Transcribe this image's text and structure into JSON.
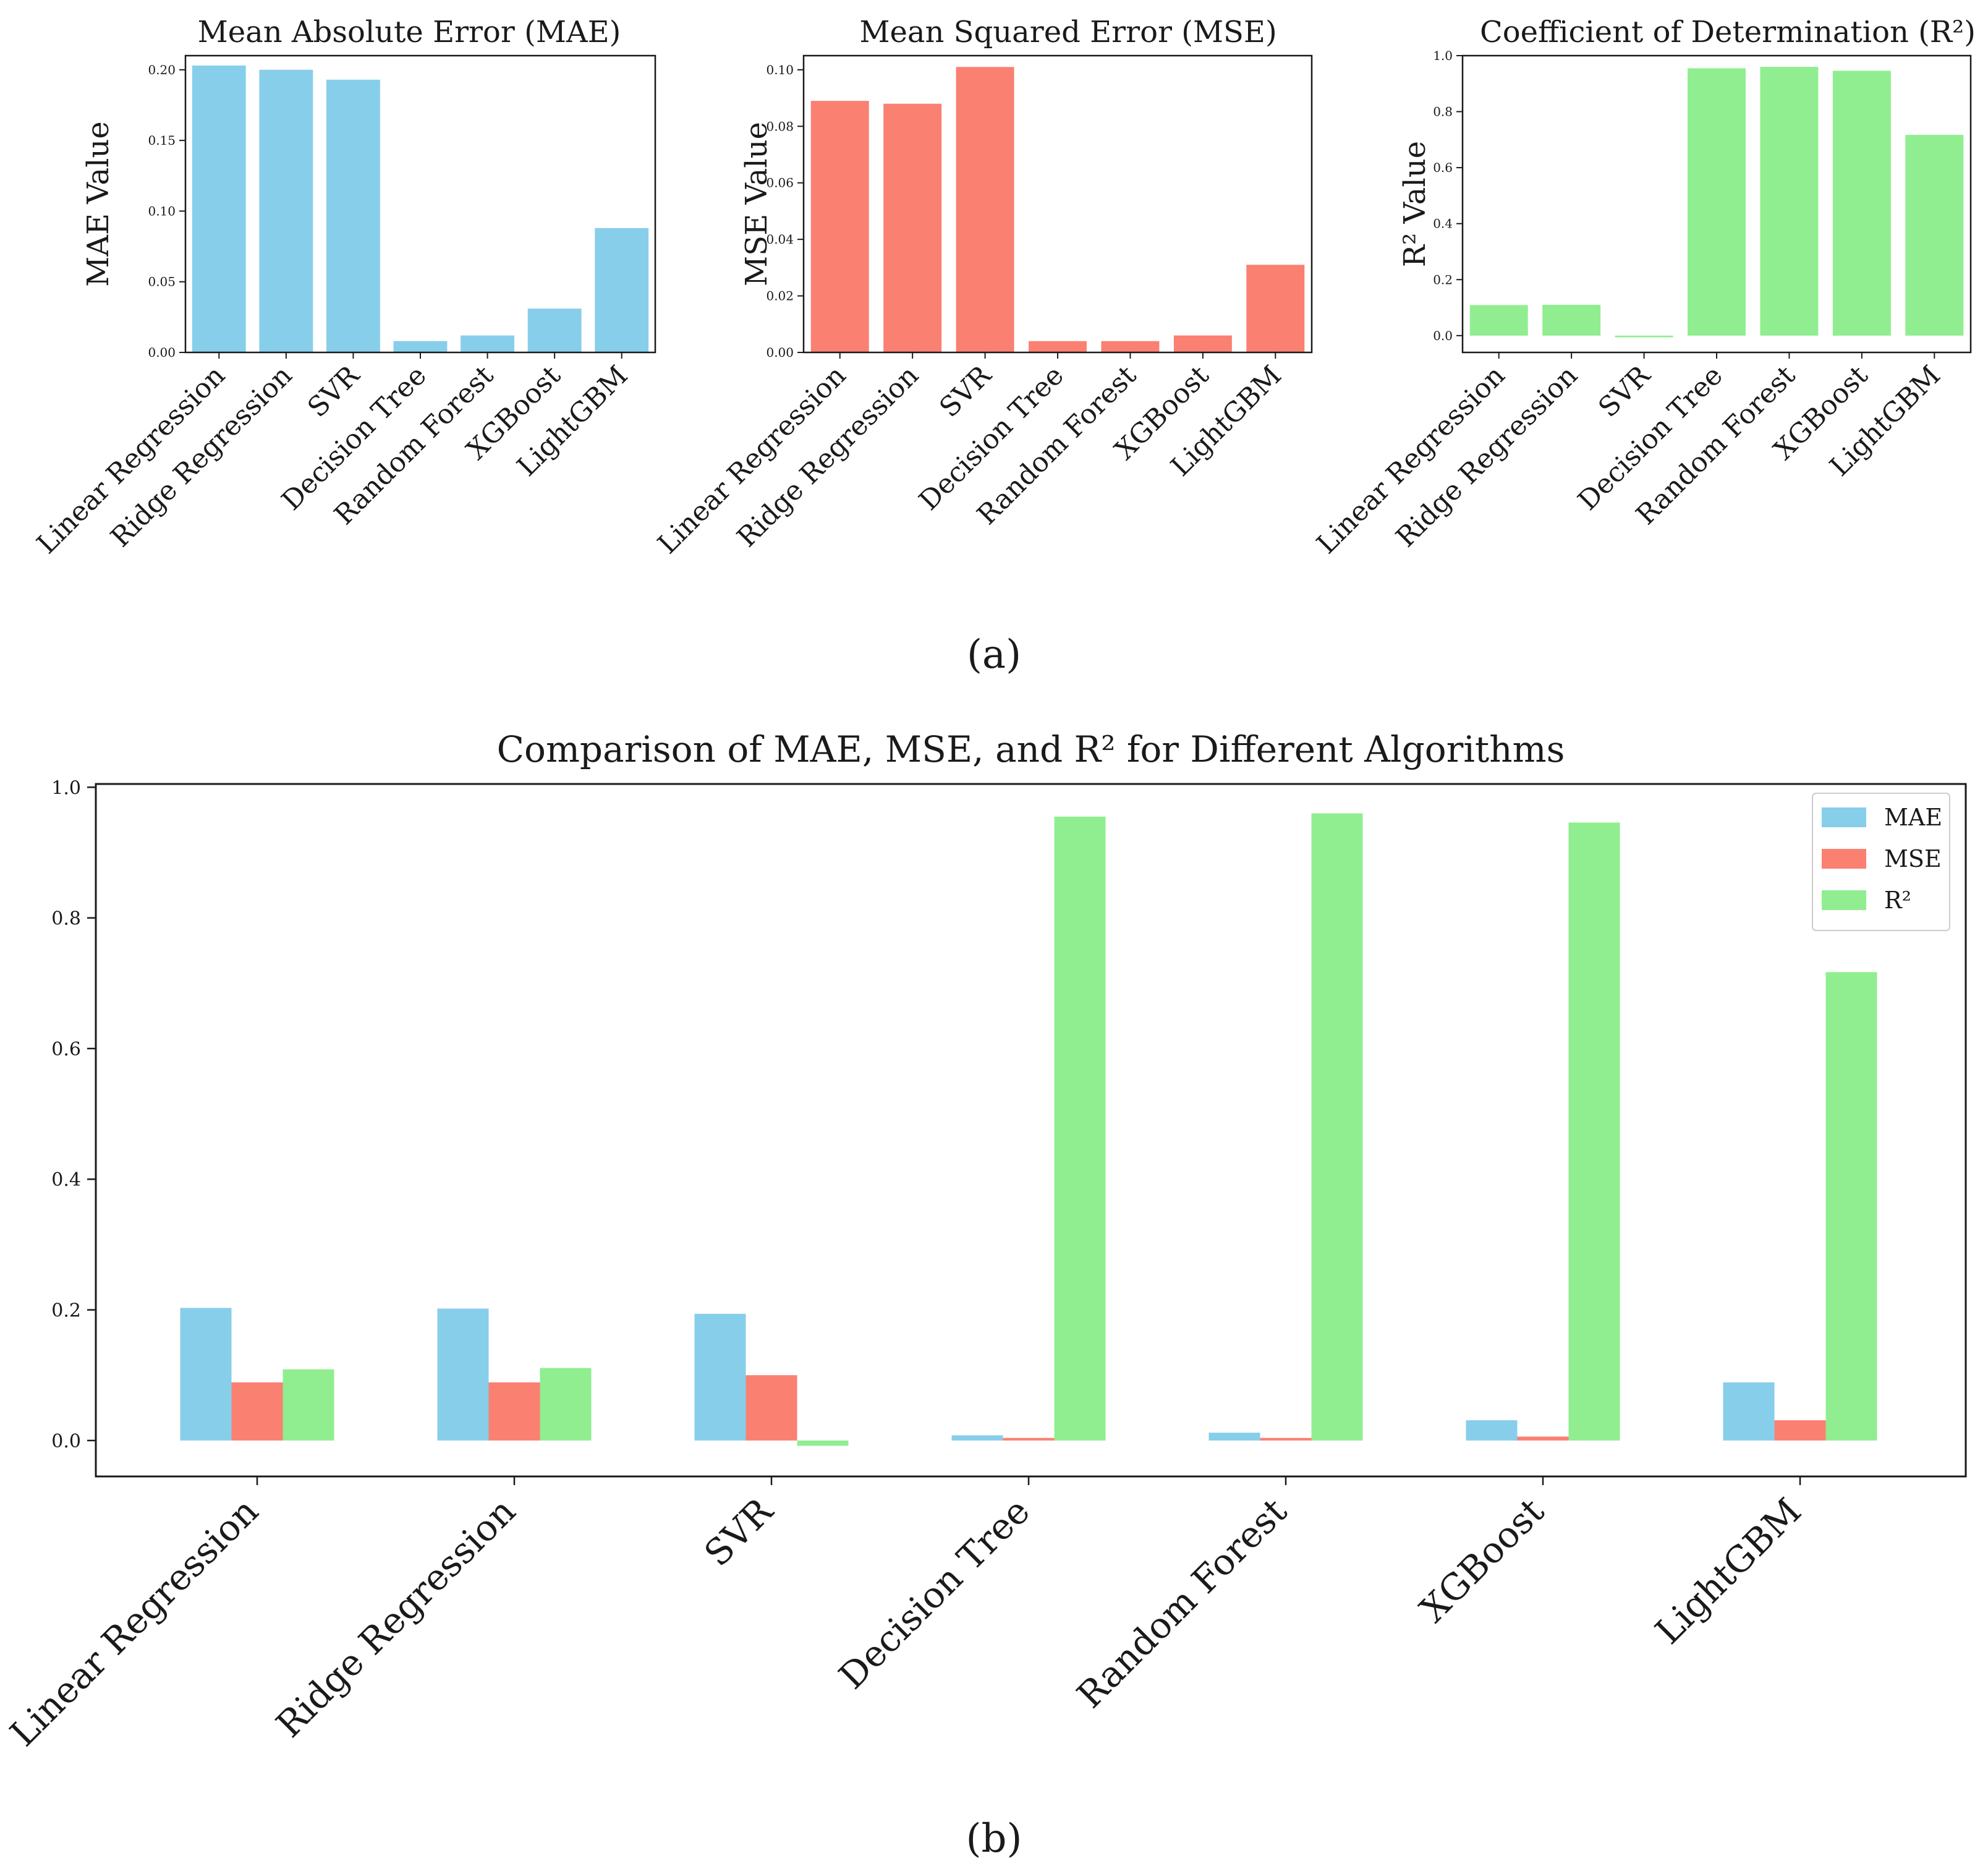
{
  "panel_labels": [
    "(a)",
    "(b)"
  ],
  "colors": {
    "mae": "#87CEEB",
    "mse": "#FA8072",
    "r2": "#90EE90"
  },
  "chart_data": [
    {
      "id": "mae",
      "type": "bar",
      "title": "Mean Absolute Error (MAE)",
      "xlabel": "",
      "ylabel": "MAE Value",
      "categories": [
        "Linear Regression",
        "Ridge Regression",
        "SVR",
        "Decision Tree",
        "Random Forest",
        "XGBoost",
        "LightGBM"
      ],
      "values": [
        0.203,
        0.2,
        0.193,
        0.008,
        0.012,
        0.031,
        0.088
      ],
      "ylim": [
        0,
        0.21
      ],
      "yticks": [
        0,
        0.05,
        0.1,
        0.15,
        0.2
      ],
      "ytick_labels": [
        "0.00",
        "0.05",
        "0.10",
        "0.15",
        "0.20"
      ],
      "color": "#87CEEB"
    },
    {
      "id": "mse",
      "type": "bar",
      "title": "Mean Squared Error (MSE)",
      "xlabel": "",
      "ylabel": "MSE Value",
      "categories": [
        "Linear Regression",
        "Ridge Regression",
        "SVR",
        "Decision Tree",
        "Random Forest",
        "XGBoost",
        "LightGBM"
      ],
      "values": [
        0.089,
        0.088,
        0.101,
        0.004,
        0.004,
        0.006,
        0.031
      ],
      "ylim": [
        0,
        0.105
      ],
      "yticks": [
        0,
        0.02,
        0.04,
        0.06,
        0.08,
        0.1
      ],
      "ytick_labels": [
        "0.00",
        "0.02",
        "0.04",
        "0.06",
        "0.08",
        "0.10"
      ],
      "color": "#FA8072"
    },
    {
      "id": "r2",
      "type": "bar",
      "title": "Coefficient of Determination (R²)",
      "xlabel": "",
      "ylabel": "R² Value",
      "categories": [
        "Linear Regression",
        "Ridge Regression",
        "SVR",
        "Decision Tree",
        "Random Forest",
        "XGBoost",
        "LightGBM"
      ],
      "values": [
        0.109,
        0.11,
        -0.006,
        0.955,
        0.96,
        0.946,
        0.717
      ],
      "ylim": [
        -0.06,
        1.0
      ],
      "yticks": [
        0,
        0.2,
        0.4,
        0.6,
        0.8,
        1.0
      ],
      "ytick_labels": [
        "0.0",
        "0.2",
        "0.4",
        "0.6",
        "0.8",
        "1.0"
      ],
      "color": "#90EE90"
    },
    {
      "id": "combined",
      "type": "bar",
      "title": "Comparison of MAE, MSE, and R² for Different Algorithms",
      "xlabel": "",
      "ylabel": "",
      "categories": [
        "Linear Regression",
        "Ridge Regression",
        "SVR",
        "Decision Tree",
        "Random Forest",
        "XGBoost",
        "LightGBM"
      ],
      "series": [
        {
          "name": "MAE",
          "color": "#87CEEB",
          "values": [
            0.203,
            0.202,
            0.194,
            0.008,
            0.012,
            0.031,
            0.089
          ]
        },
        {
          "name": "MSE",
          "color": "#FA8072",
          "values": [
            0.089,
            0.089,
            0.1,
            0.004,
            0.004,
            0.006,
            0.031
          ]
        },
        {
          "name": "R²",
          "color": "#90EE90",
          "values": [
            0.109,
            0.111,
            -0.008,
            0.955,
            0.96,
            0.946,
            0.717
          ]
        }
      ],
      "ylim": [
        -0.055,
        1.005
      ],
      "yticks": [
        0,
        0.2,
        0.4,
        0.6,
        0.8,
        1.0
      ],
      "ytick_labels": [
        "0.0",
        "0.2",
        "0.4",
        "0.6",
        "0.8",
        "1.0"
      ],
      "legend": "top-right"
    }
  ]
}
